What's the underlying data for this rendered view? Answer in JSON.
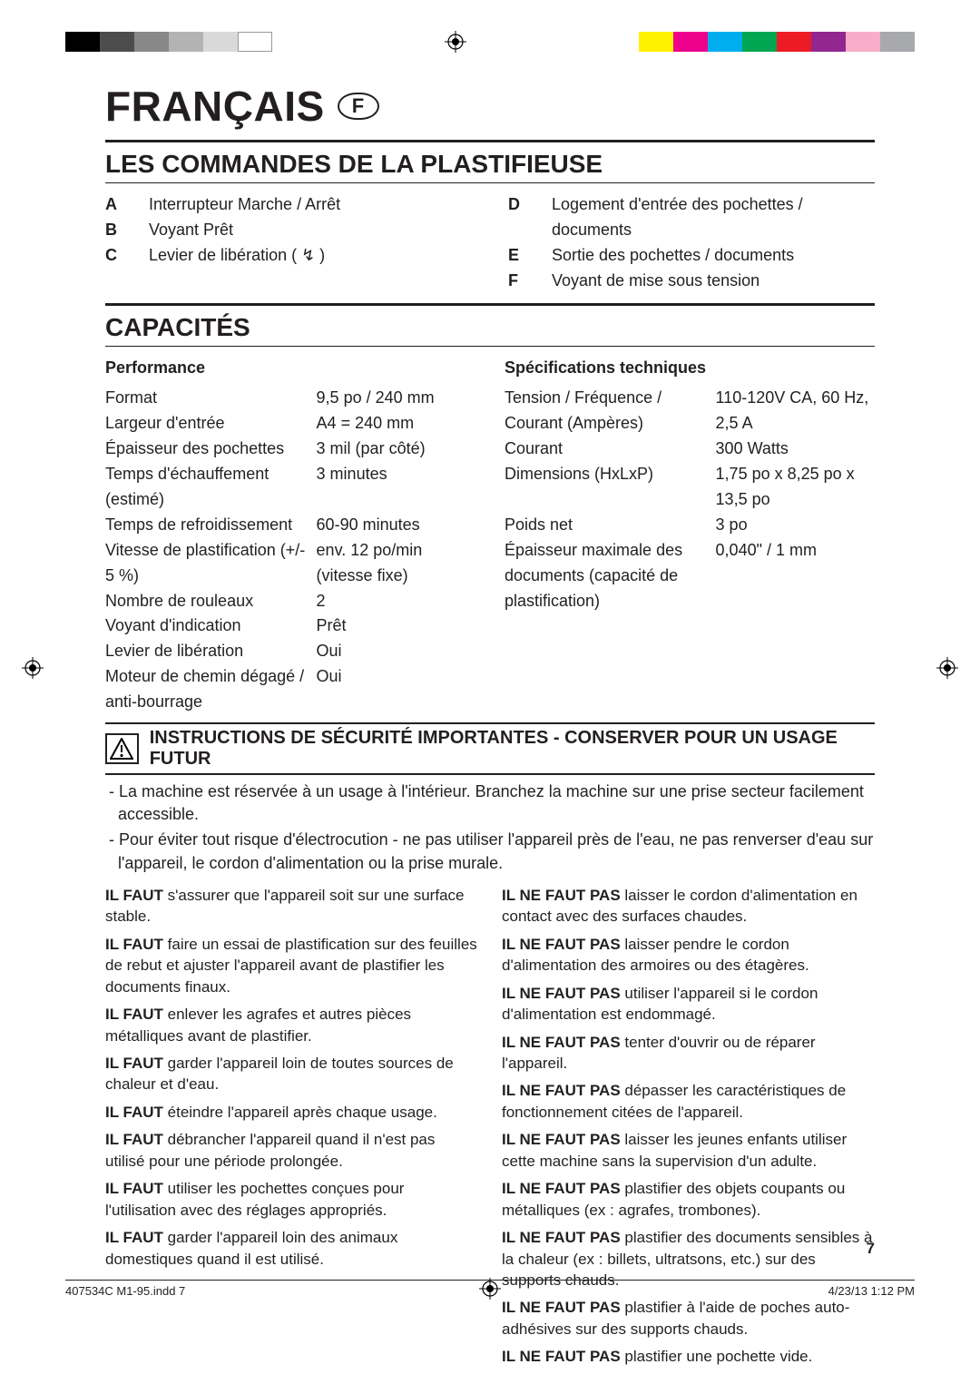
{
  "colorbar_left": [
    "#000000",
    "#4d4d4d",
    "#888888",
    "#b3b3b3",
    "#d9d9d9",
    "#ffffff"
  ],
  "colorbar_right": [
    "#fff200",
    "#ec008c",
    "#00aeef",
    "#00a651",
    "#ed1c24",
    "#92278f",
    "#f7adc8",
    "#a7a9ac"
  ],
  "lang_title": "FRANÇAIS",
  "lang_badge": "F",
  "section_controls": "LES COMMANDES DE LA PLASTIFIEUSE",
  "controls_left": [
    {
      "l": "A",
      "t": "Interrupteur Marche / Arrêt"
    },
    {
      "l": "B",
      "t": "Voyant Prêt"
    },
    {
      "l": "C",
      "t": "Levier de libération ( ↯ )"
    }
  ],
  "controls_right": [
    {
      "l": "D",
      "t": "Logement d'entrée des pochettes / documents"
    },
    {
      "l": "E",
      "t": "Sortie des pochettes / documents"
    },
    {
      "l": "F",
      "t": "Voyant de mise sous tension"
    }
  ],
  "section_cap": "CAPACITÉS",
  "cap_perf_h": "Performance",
  "cap_perf": [
    {
      "k": "Format",
      "v": "9,5 po / 240 mm"
    },
    {
      "k": "Largeur d'entrée",
      "v": "A4 = 240 mm"
    },
    {
      "k": "Épaisseur des pochettes",
      "v": "3 mil (par côté)"
    },
    {
      "k": "Temps d'échauffement (estimé)",
      "v": "3 minutes"
    },
    {
      "k": "Temps de refroidissement",
      "v": "60-90 minutes"
    },
    {
      "k": "Vitesse de plastification (+/- 5 %)",
      "v": "env. 12 po/min (vitesse fixe)"
    },
    {
      "k": "Nombre de rouleaux",
      "v": "2"
    },
    {
      "k": "Voyant d'indication",
      "v": "Prêt"
    },
    {
      "k": "Levier de libération",
      "v": "Oui"
    },
    {
      "k": "Moteur de chemin dégagé / anti-bourrage",
      "v": "Oui"
    }
  ],
  "cap_spec_h": "Spécifications techniques",
  "cap_spec": [
    {
      "k": "Tension / Fréquence / Courant (Ampères)",
      "v": "110-120V CA, 60 Hz, 2,5 A"
    },
    {
      "k": "Courant",
      "v": "300 Watts"
    },
    {
      "k": "Dimensions (HxLxP)",
      "v": "1,75 po x 8,25 po x 13,5 po"
    },
    {
      "k": "Poids net",
      "v": "3 po"
    },
    {
      "k": "Épaisseur maximale des documents (capacité de plastification)",
      "v": "0,040\" / 1 mm"
    }
  ],
  "safety_title": "INSTRUCTIONS DE SÉCURITÉ IMPORTANTES - CONSERVER POUR UN USAGE FUTUR",
  "safety_intro": [
    "- La machine est réservée à un usage à l'intérieur. Branchez la machine sur une prise secteur facilement accessible.",
    "- Pour éviter tout risque d'électrocution - ne pas utiliser l'appareil près de l'eau, ne pas renverser d'eau sur l'appareil, le cordon d'alimentation ou la prise murale."
  ],
  "dos": [
    {
      "b": "IL FAUT",
      "t": " s'assurer que l'appareil soit sur une surface stable."
    },
    {
      "b": "IL FAUT",
      "t": " faire un essai de plastification sur des feuilles de rebut et ajuster l'appareil avant de plastifier les documents finaux."
    },
    {
      "b": "IL FAUT",
      "t": " enlever les agrafes et autres pièces métalliques avant de plastifier."
    },
    {
      "b": "IL FAUT",
      "t": " garder l'appareil loin de toutes sources de chaleur et d'eau."
    },
    {
      "b": "IL FAUT",
      "t": " éteindre l'appareil après chaque usage."
    },
    {
      "b": "IL FAUT",
      "t": " débrancher l'appareil quand il n'est pas utilisé pour une période prolongée."
    },
    {
      "b": "IL FAUT",
      "t": " utiliser les pochettes conçues pour l'utilisation avec des réglages appropriés."
    },
    {
      "b": "IL FAUT",
      "t": " garder l'appareil loin des animaux domestiques quand il est utilisé."
    }
  ],
  "donts": [
    {
      "b": "IL NE FAUT PAS",
      "t": "  laisser le cordon d'alimentation en contact avec des surfaces chaudes."
    },
    {
      "b": "IL NE FAUT PAS",
      "t": " laisser pendre le cordon d'alimentation des armoires ou des étagères."
    },
    {
      "b": "IL NE FAUT PAS",
      "t": " utiliser l'appareil si le cordon d'alimentation est endommagé."
    },
    {
      "b": "IL NE FAUT PAS",
      "t": " tenter d'ouvrir ou de réparer l'appareil."
    },
    {
      "b": "IL NE FAUT PAS",
      "t": " dépasser les caractéristiques de fonctionnement citées de l'appareil."
    },
    {
      "b": "IL NE FAUT PAS",
      "t": " laisser les jeunes enfants utiliser cette machine sans la supervision d'un adulte."
    },
    {
      "b": "IL NE FAUT PAS",
      "t": " plastifier des objets coupants ou métalliques (ex : agrafes, trombones)."
    },
    {
      "b": "IL NE FAUT PAS",
      "t": " plastifier des documents sensibles à la chaleur (ex : billets, ultratsons, etc.) sur des supports chauds."
    },
    {
      "b": "IL NE FAUT PAS",
      "t": " plastifier à l'aide de poches auto-adhésives sur des supports chauds."
    },
    {
      "b": "IL NE FAUT PAS",
      "t": " plastifier une pochette vide."
    }
  ],
  "page_number": "7",
  "footer_left": "407534C M1-95.indd   7",
  "footer_right": "4/23/13   1:12 PM"
}
